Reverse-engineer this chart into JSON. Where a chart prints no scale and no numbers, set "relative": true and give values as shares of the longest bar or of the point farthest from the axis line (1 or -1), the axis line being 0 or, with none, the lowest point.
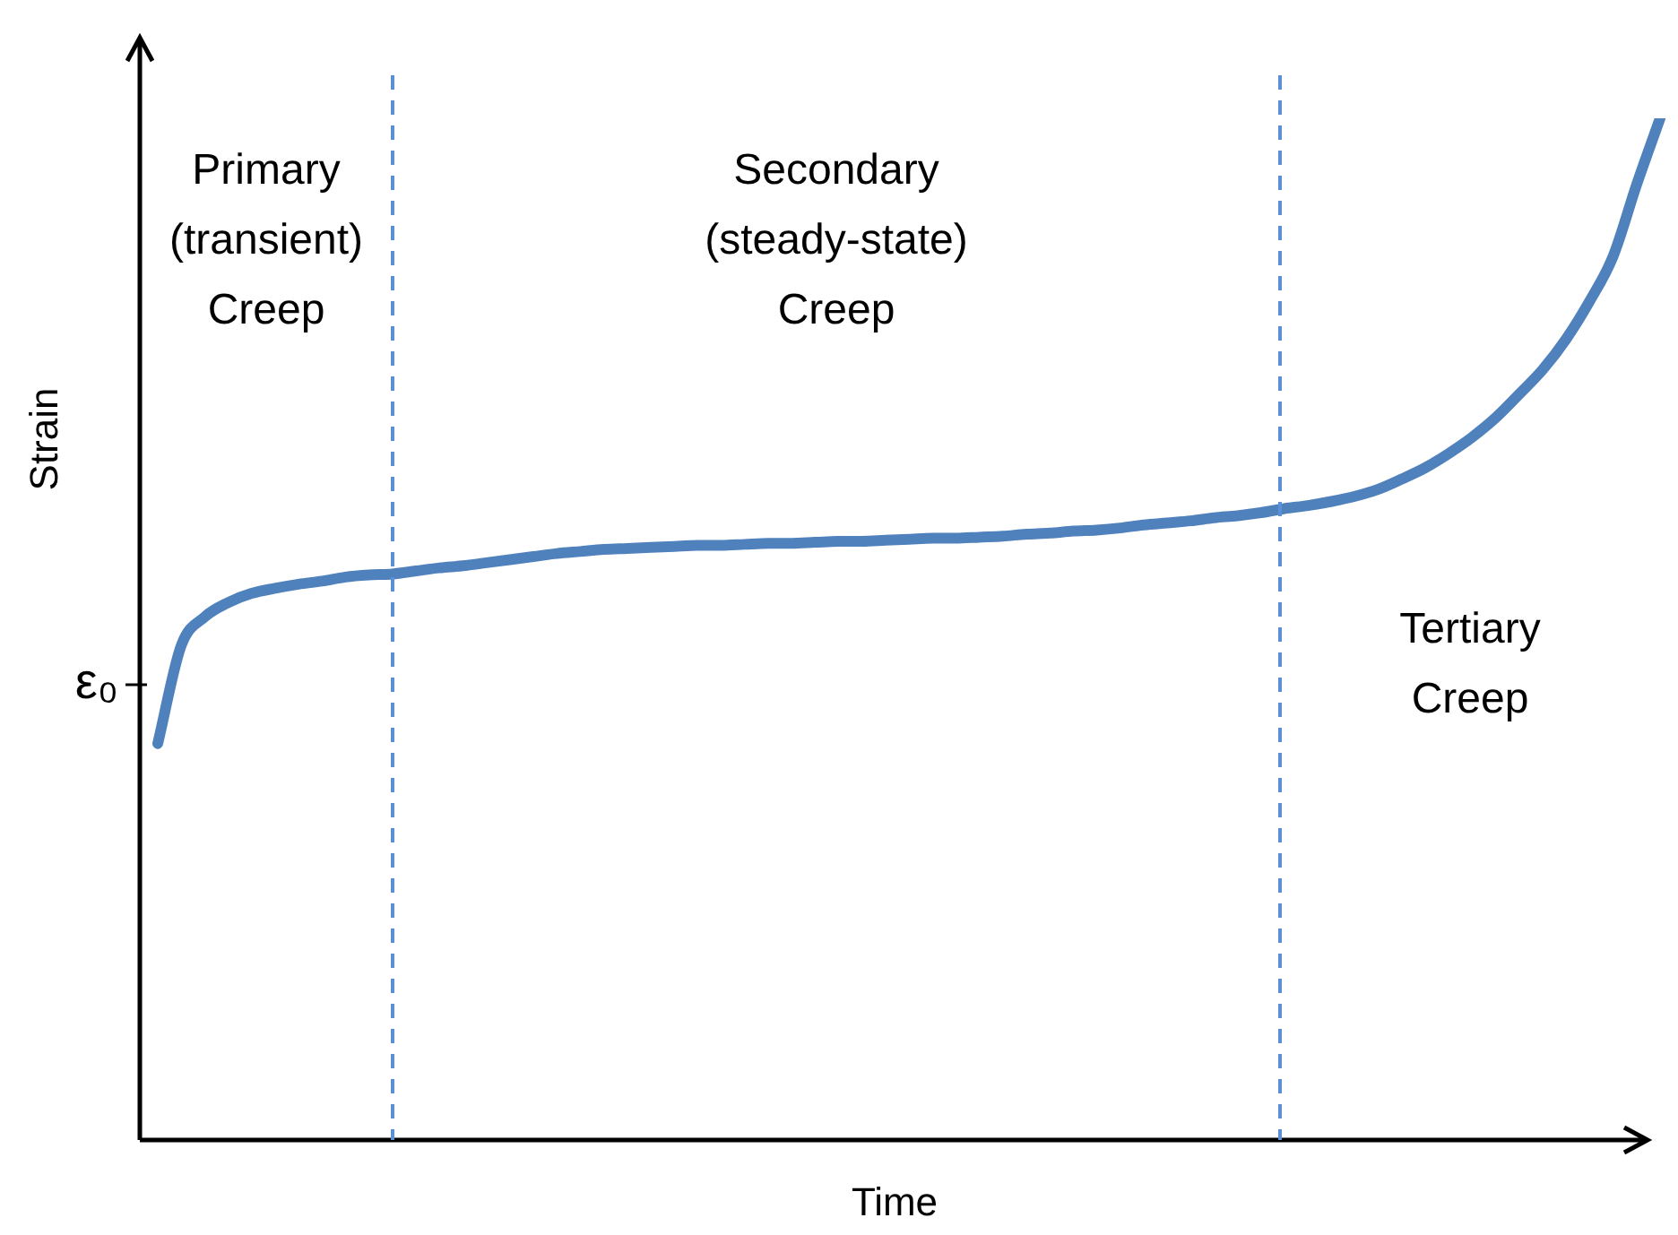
{
  "chart_data": {
    "type": "line",
    "relative": true,
    "xlabel": "Time",
    "ylabel": "Strain",
    "categories": [
      null,
      null,
      null,
      null,
      null,
      null,
      null,
      null,
      null,
      null,
      null,
      null,
      null,
      null,
      null,
      null,
      null,
      null,
      null,
      null,
      null,
      null,
      null,
      null,
      null,
      null,
      null,
      null,
      null,
      null,
      null,
      null,
      null,
      null,
      null,
      null,
      null,
      null,
      null,
      null,
      null,
      null,
      null,
      null,
      null,
      null,
      null,
      null,
      null,
      null,
      null,
      null,
      null,
      null,
      null,
      null,
      null,
      null,
      null,
      null,
      null,
      null,
      null,
      null,
      null
    ],
    "series": [
      {
        "color": "#4f81bd",
        "values": [
          0.388,
          0.484,
          0.512,
          0.526,
          0.535,
          0.54,
          0.544,
          0.547,
          0.551,
          0.553,
          0.554,
          0.557,
          0.56,
          0.562,
          0.565,
          0.568,
          0.571,
          0.574,
          0.576,
          0.578,
          0.579,
          0.58,
          0.581,
          0.582,
          0.582,
          0.583,
          0.584,
          0.584,
          0.585,
          0.586,
          0.586,
          0.587,
          0.588,
          0.589,
          0.589,
          0.59,
          0.591,
          0.593,
          0.594,
          0.596,
          0.597,
          0.599,
          0.602,
          0.604,
          0.606,
          0.609,
          0.611,
          0.614,
          0.618,
          0.621,
          0.625,
          0.63,
          0.637,
          0.647,
          0.658,
          0.672,
          0.688,
          0.707,
          0.73,
          0.754,
          0.784,
          0.821,
          0.865,
          0.935,
          1
        ]
      }
    ],
    "annotations": [
      "ε₀",
      "Primary\n(transient)\nCreep",
      "Secondary\n(steady-state)\nCreep",
      "Tertiary\nCreep"
    ],
    "legend": false,
    "marker": "none",
    "line_style": "solid"
  }
}
